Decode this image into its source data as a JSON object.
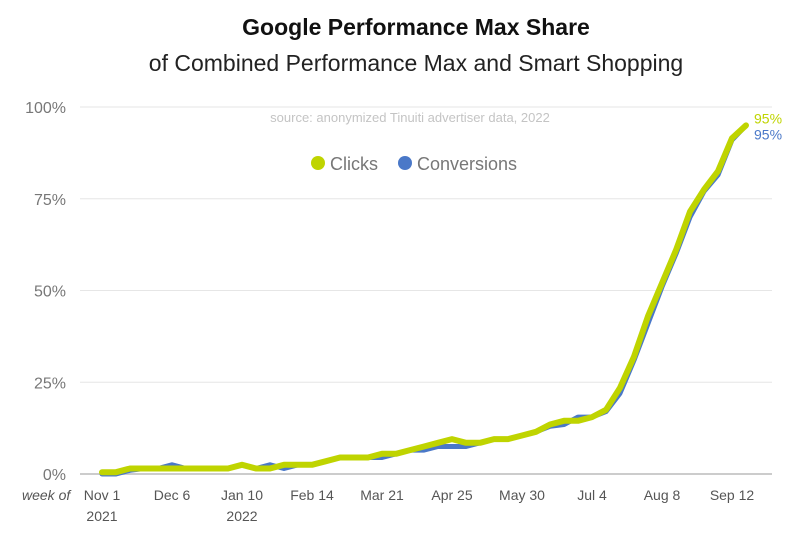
{
  "chart_data": {
    "type": "line",
    "title": "Google Performance Max Share",
    "subtitle": "of Combined Performance Max and Smart Shopping",
    "source": "source: anonymized Tinuiti advertiser data, 2022",
    "xlabel": "week of",
    "ylim": [
      0,
      100
    ],
    "y_ticks": [
      "0%",
      "25%",
      "50%",
      "75%",
      "100%"
    ],
    "x_ticks": [
      {
        "label": "Nov 1",
        "sub": "2021",
        "date": "2021-11-01"
      },
      {
        "label": "Dec 6",
        "sub": "",
        "date": "2021-12-06"
      },
      {
        "label": "Jan 10",
        "sub": "2022",
        "date": "2022-01-10"
      },
      {
        "label": "Feb 14",
        "sub": "",
        "date": "2022-02-14"
      },
      {
        "label": "Mar 21",
        "sub": "",
        "date": "2022-03-21"
      },
      {
        "label": "Apr 25",
        "sub": "",
        "date": "2022-04-25"
      },
      {
        "label": "May 30",
        "sub": "",
        "date": "2022-05-30"
      },
      {
        "label": "Jul 4",
        "sub": "",
        "date": "2022-07-04"
      },
      {
        "label": "Aug 8",
        "sub": "",
        "date": "2022-08-08"
      },
      {
        "label": "Sep 12",
        "sub": "",
        "date": "2022-09-12"
      }
    ],
    "x": [
      "2021-11-01",
      "2021-11-08",
      "2021-11-15",
      "2021-11-22",
      "2021-11-29",
      "2021-12-06",
      "2021-12-13",
      "2021-12-20",
      "2021-12-27",
      "2022-01-03",
      "2022-01-10",
      "2022-01-17",
      "2022-01-24",
      "2022-01-31",
      "2022-02-07",
      "2022-02-14",
      "2022-02-21",
      "2022-02-28",
      "2022-03-07",
      "2022-03-14",
      "2022-03-21",
      "2022-03-28",
      "2022-04-04",
      "2022-04-11",
      "2022-04-18",
      "2022-04-25",
      "2022-05-02",
      "2022-05-09",
      "2022-05-16",
      "2022-05-23",
      "2022-05-30",
      "2022-06-06",
      "2022-06-13",
      "2022-06-20",
      "2022-06-27",
      "2022-07-04",
      "2022-07-11",
      "2022-07-18",
      "2022-07-25",
      "2022-08-01",
      "2022-08-08",
      "2022-08-15",
      "2022-08-22",
      "2022-08-29",
      "2022-09-05",
      "2022-09-12",
      "2022-09-19"
    ],
    "series": [
      {
        "name": "Conversions",
        "color": "#4a78c8",
        "end_label": "95%",
        "values": [
          0,
          0,
          1,
          1.5,
          1.5,
          2.5,
          1.5,
          1.5,
          1.5,
          1.5,
          2.5,
          1.5,
          2.5,
          1.5,
          2.5,
          2.5,
          3.5,
          4.5,
          4.5,
          4.5,
          4.5,
          5.5,
          6.5,
          6.5,
          7.5,
          7.5,
          7.5,
          8.5,
          9.5,
          9.5,
          10.5,
          11.5,
          13,
          13.5,
          15.5,
          15.5,
          17,
          22,
          31,
          41,
          51,
          60,
          70,
          77,
          81.5,
          91,
          95
        ]
      },
      {
        "name": "Clicks",
        "color": "#bfd400",
        "end_label": "95%",
        "values": [
          0.5,
          0.5,
          1.5,
          1.5,
          1.5,
          1.5,
          1.5,
          1.5,
          1.5,
          1.5,
          2.5,
          1.5,
          1.5,
          2.5,
          2.5,
          2.5,
          3.5,
          4.5,
          4.5,
          4.5,
          5.5,
          5.5,
          6.5,
          7.5,
          8.5,
          9.5,
          8.5,
          8.5,
          9.5,
          9.5,
          10.5,
          11.5,
          13.5,
          14.5,
          14.5,
          15.5,
          17.5,
          23.5,
          32,
          43,
          52,
          61,
          71.5,
          77.5,
          82.5,
          91.5,
          95
        ]
      }
    ],
    "legend": {
      "placement": "top-center",
      "items": [
        "Clicks",
        "Conversions"
      ]
    },
    "grid": true
  }
}
